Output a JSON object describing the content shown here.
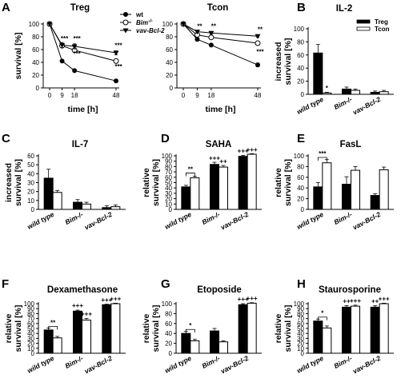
{
  "chart_data": [
    {
      "id": "A",
      "type": "line",
      "panel_label": "A",
      "title": "Treg",
      "xlabel": "time [h]",
      "ylabel": "survival [%]",
      "xticks": [
        0,
        9,
        18,
        48
      ],
      "yticks": [
        0,
        20,
        40,
        60,
        80,
        100
      ],
      "xlim": [
        0,
        48
      ],
      "ylim": [
        0,
        100
      ],
      "series": [
        {
          "name": "wt",
          "marker": "filled-circle",
          "x": [
            0,
            9,
            18,
            48
          ],
          "y": [
            100,
            42,
            27,
            11
          ],
          "err": [
            0,
            1.5,
            1.5,
            1.5
          ]
        },
        {
          "name": "Bim",
          "name_sup": "-/-",
          "marker": "open-circle",
          "x": [
            0,
            9,
            18,
            48
          ],
          "y": [
            100,
            66,
            59,
            42
          ],
          "err": [
            0,
            3,
            3,
            3
          ]
        },
        {
          "name": "vav-Bcl-2",
          "marker": "filled-triangle-down",
          "x": [
            0,
            9,
            18,
            48
          ],
          "y": [
            100,
            67,
            65,
            55
          ],
          "err": [
            0,
            4,
            4,
            3
          ]
        }
      ],
      "annotations": [
        {
          "text": "***",
          "x": 9,
          "y": 74
        },
        {
          "text": "***",
          "x": 18,
          "y": 74
        },
        {
          "text": "***",
          "x": 18,
          "y": 50
        },
        {
          "text": "***",
          "x": 48,
          "y": 63
        },
        {
          "text": "***",
          "x": 48,
          "y": 30
        }
      ]
    },
    {
      "id": "A2",
      "type": "line",
      "title": "Tcon",
      "xlabel": "time [h]",
      "ylabel": "",
      "xticks": [
        0,
        9,
        18,
        48
      ],
      "yticks": [
        0,
        20,
        40,
        60,
        80,
        100
      ],
      "xlim": [
        0,
        48
      ],
      "ylim": [
        0,
        100
      ],
      "series": [
        {
          "name": "wt",
          "marker": "filled-circle",
          "x": [
            0,
            9,
            18,
            48
          ],
          "y": [
            100,
            76,
            67,
            36
          ],
          "err": [
            0,
            2,
            2,
            3
          ]
        },
        {
          "name": "Bim",
          "name_sup": "-/-",
          "marker": "open-circle",
          "x": [
            0,
            9,
            18,
            48
          ],
          "y": [
            100,
            83,
            79,
            70
          ],
          "err": [
            0,
            2,
            2,
            2
          ]
        },
        {
          "name": "vav-Bcl-2",
          "marker": "filled-triangle-down",
          "x": [
            0,
            9,
            18,
            48
          ],
          "y": [
            100,
            88,
            86,
            81
          ],
          "err": [
            0,
            2,
            2,
            2
          ]
        }
      ],
      "annotations": [
        {
          "text": "**",
          "x": 9,
          "y": 93
        },
        {
          "text": "**",
          "x": 18,
          "y": 93
        },
        {
          "text": "**",
          "x": 48,
          "y": 88
        },
        {
          "text": "***",
          "x": 48,
          "y": 53
        }
      ]
    },
    {
      "id": "B",
      "type": "bar",
      "panel_label": "B",
      "title": "IL-2",
      "ylabel": "increased survival [%]",
      "categories": [
        "wild type",
        "Bim-/-",
        "vav-Bcl-2"
      ],
      "yticks": [
        0,
        20,
        40,
        60,
        80,
        100
      ],
      "ylim": [
        0,
        100
      ],
      "legend": [
        "Treg",
        "Tcon"
      ],
      "series": [
        {
          "name": "Treg",
          "fill": "#000000",
          "values": [
            63,
            8,
            3
          ],
          "err": [
            13,
            3,
            2
          ]
        },
        {
          "name": "Tcon",
          "fill": "#ffffff",
          "values": [
            2,
            6,
            4
          ],
          "err": [
            1,
            2,
            2
          ]
        }
      ],
      "annotations": [
        {
          "text": "*",
          "cat": 0,
          "series": 1,
          "y": 5
        }
      ]
    },
    {
      "id": "C",
      "type": "bar",
      "panel_label": "C",
      "title": "IL-7",
      "ylabel": "increased survival [%]",
      "categories": [
        "wild type",
        "Bim-/-",
        "vav-Bcl-2"
      ],
      "yticks": [
        0,
        10,
        20,
        30,
        40,
        50,
        60
      ],
      "ylim": [
        0,
        60
      ],
      "series": [
        {
          "name": "Treg",
          "fill": "#000000",
          "values": [
            35,
            8,
            2
          ],
          "err": [
            10,
            3,
            2
          ]
        },
        {
          "name": "Tcon",
          "fill": "#ffffff",
          "values": [
            19,
            6,
            3
          ],
          "err": [
            2,
            2,
            2
          ]
        }
      ],
      "annotations": []
    },
    {
      "id": "D",
      "type": "bar",
      "panel_label": "D",
      "title": "SAHA",
      "ylabel": "relative survival [%]",
      "categories": [
        "wild type",
        "Bim-/-",
        "vav-Bcl-2"
      ],
      "yticks": [
        0,
        10,
        20,
        30,
        40,
        50,
        60,
        70,
        80,
        90,
        100
      ],
      "ylim": [
        0,
        100
      ],
      "series": [
        {
          "name": "Treg",
          "fill": "#000000",
          "values": [
            42,
            84,
            99
          ],
          "err": [
            3,
            4,
            2
          ]
        },
        {
          "name": "Tcon",
          "fill": "#ffffff",
          "values": [
            59,
            79,
            103
          ],
          "err": [
            3,
            3,
            1
          ]
        }
      ],
      "annotations": [
        {
          "text": "**",
          "bracket": 0,
          "y": 68
        },
        {
          "text": "+++",
          "cat": 1,
          "series": 0,
          "y": 90
        },
        {
          "text": "++",
          "cat": 1,
          "series": 1,
          "y": 84
        },
        {
          "text": "+++",
          "cat": 2,
          "series": 0,
          "y": 104
        },
        {
          "text": "+++",
          "cat": 2,
          "series": 1,
          "y": 106
        }
      ]
    },
    {
      "id": "E",
      "type": "bar",
      "panel_label": "E",
      "title": "FasL",
      "ylabel": "relative survival [%]",
      "categories": [
        "wild type",
        "Bim-/-",
        "vav-Bcl-2"
      ],
      "yticks": [
        0,
        20,
        40,
        60,
        80,
        100
      ],
      "ylim": [
        0,
        100
      ],
      "series": [
        {
          "name": "Treg",
          "fill": "#000000",
          "values": [
            42,
            47,
            26
          ],
          "err": [
            8,
            14,
            3
          ]
        },
        {
          "name": "Tcon",
          "fill": "#ffffff",
          "values": [
            87,
            73,
            74
          ],
          "err": [
            6,
            7,
            5
          ]
        }
      ],
      "annotations": [
        {
          "text": "***",
          "bracket": 0,
          "y": 97
        }
      ]
    },
    {
      "id": "F",
      "type": "bar",
      "panel_label": "F",
      "title": "Dexamethasone",
      "ylabel": "relative survival [%]",
      "categories": [
        "wild type",
        "Bim-/-",
        "vav-Bcl-2"
      ],
      "yticks": [
        0,
        10,
        20,
        30,
        40,
        50,
        60,
        70,
        80,
        90,
        100
      ],
      "ylim": [
        0,
        100
      ],
      "series": [
        {
          "name": "Treg",
          "fill": "#000000",
          "values": [
            47,
            85,
            98
          ],
          "err": [
            4,
            2,
            1
          ]
        },
        {
          "name": "Tcon",
          "fill": "#ffffff",
          "values": [
            31,
            67,
            100
          ],
          "err": [
            3,
            3,
            1
          ]
        }
      ],
      "annotations": [
        {
          "text": "**",
          "bracket": 0,
          "y": 54
        },
        {
          "text": "+++",
          "cat": 1,
          "series": 0,
          "y": 90
        },
        {
          "text": "+++",
          "cat": 1,
          "series": 1,
          "y": 73
        },
        {
          "text": "+++",
          "cat": 2,
          "series": 0,
          "y": 102
        },
        {
          "text": "+++",
          "cat": 2,
          "series": 1,
          "y": 104
        }
      ]
    },
    {
      "id": "G",
      "type": "bar",
      "panel_label": "G",
      "title": "Etoposide",
      "ylabel": "relative survival [%]",
      "categories": [
        "wild type",
        "Bim-/-",
        "vav-Bcl-2"
      ],
      "yticks": [
        0,
        20,
        40,
        60,
        80,
        100
      ],
      "ylim": [
        0,
        100
      ],
      "series": [
        {
          "name": "Treg",
          "fill": "#000000",
          "values": [
            40,
            45,
            98
          ],
          "err": [
            4,
            5,
            2
          ]
        },
        {
          "name": "Tcon",
          "fill": "#ffffff",
          "values": [
            25,
            23,
            101
          ],
          "err": [
            3,
            2,
            1
          ]
        }
      ],
      "annotations": [
        {
          "text": "*",
          "bracket": 0,
          "y": 48
        },
        {
          "text": "+++",
          "cat": 2,
          "series": 0,
          "y": 103
        },
        {
          "text": "+++",
          "cat": 2,
          "series": 1,
          "y": 105
        }
      ]
    },
    {
      "id": "H",
      "type": "bar",
      "panel_label": "H",
      "title": "Staurosporine",
      "ylabel": "relative survival [%]",
      "categories": [
        "wild type",
        "Bim-/-",
        "vav-Bcl-2"
      ],
      "yticks": [
        0,
        10,
        20,
        30,
        40,
        50,
        60,
        70,
        80,
        90,
        100
      ],
      "ylim": [
        0,
        100
      ],
      "series": [
        {
          "name": "Treg",
          "fill": "#000000",
          "values": [
            65,
            93,
            93
          ],
          "err": [
            4,
            3,
            3
          ]
        },
        {
          "name": "Tcon",
          "fill": "#ffffff",
          "values": [
            51,
            95,
            100
          ],
          "err": [
            4,
            2,
            1
          ]
        }
      ],
      "annotations": [
        {
          "text": "*",
          "bracket": 0,
          "y": 73
        },
        {
          "text": "++",
          "cat": 1,
          "series": 0,
          "y": 99
        },
        {
          "text": "+++",
          "cat": 1,
          "series": 1,
          "y": 100
        },
        {
          "text": "++",
          "cat": 2,
          "series": 0,
          "y": 99
        },
        {
          "text": "+++",
          "cat": 2,
          "series": 1,
          "y": 104
        }
      ]
    }
  ]
}
